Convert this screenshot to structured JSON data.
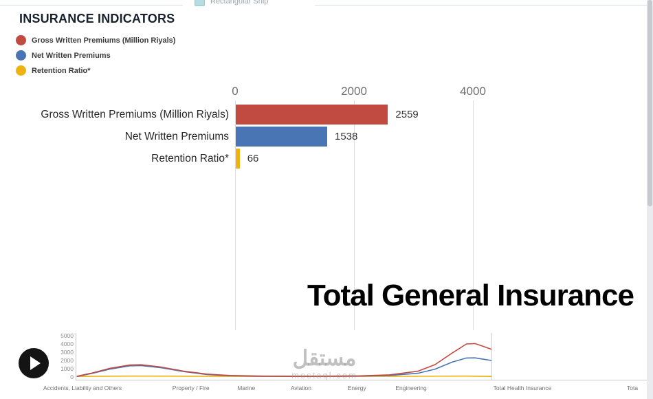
{
  "top_bar": {
    "partial_item_label": "Rectangular Ship"
  },
  "header": {
    "title": "INSURANCE INDICATORS",
    "legend": [
      {
        "label": "Gross Written Premiums (Million Riyals)",
        "color": "#c14a41"
      },
      {
        "label": "Net Written Premiums",
        "color": "#4a75b5"
      },
      {
        "label": "Retention Ratio*",
        "color": "#eeb311"
      }
    ]
  },
  "chart_data": [
    {
      "type": "bar",
      "orientation": "horizontal",
      "categories": [
        "Gross Written Premiums (Million Riyals)",
        "Net Written Premiums",
        "Retention Ratio*"
      ],
      "values": [
        2559,
        1538,
        66
      ],
      "value_labels": [
        "2559",
        "1538",
        "66"
      ],
      "colors": [
        "#c14a41",
        "#4a75b5",
        "#eeb311"
      ],
      "x_ticks": [
        0,
        2000,
        4000
      ],
      "xlim": [
        0,
        4700
      ],
      "grid": true,
      "annotation": "Total General Insurance"
    },
    {
      "type": "line",
      "role": "timeline",
      "y_ticks": [
        5000,
        4000,
        3000,
        2000,
        1000,
        0
      ],
      "ylim": [
        0,
        5000
      ],
      "playhead_fraction": 0.729,
      "playhead_label": "Total General Insurance",
      "x_axis_labels": [
        {
          "label": "Accidents, Liability and Others",
          "f": 0.012
        },
        {
          "label": "Property / Fire",
          "f": 0.202
        },
        {
          "label": "Marine",
          "f": 0.299
        },
        {
          "label": "Aviation",
          "f": 0.395
        },
        {
          "label": "Energy",
          "f": 0.493
        },
        {
          "label": "Engineering",
          "f": 0.588
        },
        {
          "label": "Total Health Insurance",
          "f": 0.783
        },
        {
          "label": "Tota",
          "f": 0.976
        }
      ],
      "series": [
        {
          "name": "Gross Written Premiums (Million Riyals)",
          "color": "#c14a41",
          "points": [
            [
              0.002,
              80
            ],
            [
              0.03,
              500
            ],
            [
              0.06,
              1050
            ],
            [
              0.095,
              1450
            ],
            [
              0.115,
              1480
            ],
            [
              0.15,
              1200
            ],
            [
              0.19,
              700
            ],
            [
              0.23,
              350
            ],
            [
              0.27,
              180
            ],
            [
              0.32,
              120
            ],
            [
              0.38,
              100
            ],
            [
              0.45,
              110
            ],
            [
              0.5,
              140
            ],
            [
              0.55,
              260
            ],
            [
              0.6,
              700
            ],
            [
              0.63,
              1500
            ],
            [
              0.66,
              2900
            ],
            [
              0.685,
              4000
            ],
            [
              0.7,
              4050
            ],
            [
              0.715,
              3700
            ],
            [
              0.729,
              3350
            ]
          ]
        },
        {
          "name": "Net Written Premiums",
          "color": "#4a75b5",
          "points": [
            [
              0.002,
              60
            ],
            [
              0.03,
              450
            ],
            [
              0.06,
              950
            ],
            [
              0.095,
              1350
            ],
            [
              0.115,
              1380
            ],
            [
              0.15,
              1120
            ],
            [
              0.19,
              650
            ],
            [
              0.23,
              300
            ],
            [
              0.27,
              150
            ],
            [
              0.32,
              90
            ],
            [
              0.38,
              75
            ],
            [
              0.45,
              85
            ],
            [
              0.5,
              105
            ],
            [
              0.55,
              180
            ],
            [
              0.6,
              450
            ],
            [
              0.63,
              950
            ],
            [
              0.66,
              1800
            ],
            [
              0.685,
              2300
            ],
            [
              0.7,
              2320
            ],
            [
              0.715,
              2150
            ],
            [
              0.729,
              2000
            ]
          ]
        },
        {
          "name": "Retention Ratio*",
          "color": "#eeb311",
          "points": [
            [
              0.002,
              70
            ],
            [
              0.1,
              110
            ],
            [
              0.2,
              90
            ],
            [
              0.3,
              75
            ],
            [
              0.4,
              70
            ],
            [
              0.5,
              75
            ],
            [
              0.6,
              85
            ],
            [
              0.68,
              110
            ],
            [
              0.729,
              70
            ]
          ]
        }
      ]
    }
  ],
  "watermark": {
    "title": "مستقل",
    "subtitle": "mostaql.com"
  },
  "controls": {
    "play": "play"
  }
}
